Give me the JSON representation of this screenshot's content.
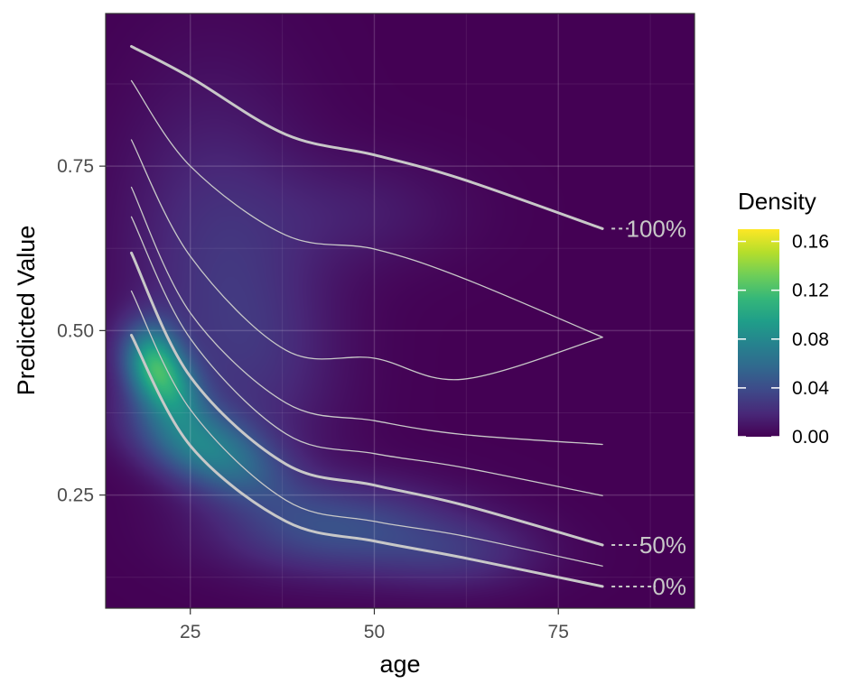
{
  "chart_data": {
    "type": "heatmap",
    "xlabel": "age",
    "ylabel": "Predicted Value",
    "xlim": [
      13.5,
      93.5
    ],
    "ylim": [
      0.078,
      0.982
    ],
    "x_ticks": [
      25,
      50,
      75
    ],
    "x_tick_labels": [
      "25",
      "50",
      "75"
    ],
    "y_ticks": [
      0.25,
      0.5,
      0.75
    ],
    "y_tick_labels": [
      "0.25",
      "0.50",
      "0.75"
    ],
    "grid": true,
    "panel_background": "#440154",
    "border_color": "#333333",
    "legend": {
      "title": "Density",
      "placement": "right",
      "min": 0,
      "max": 0.17,
      "ticks": [
        0.0,
        0.04,
        0.08,
        0.12,
        0.16
      ],
      "tick_labels": [
        "0.00",
        "0.04",
        "0.08",
        "0.12",
        "0.16"
      ],
      "colorscale": [
        "#440154",
        "#482878",
        "#3e4989",
        "#31688e",
        "#26828e",
        "#1f9e89",
        "#35b779",
        "#6ece58",
        "#b5de2b",
        "#fde725"
      ]
    },
    "density_components": [
      {
        "x": 21,
        "y": 0.43,
        "sx": 3.5,
        "sy": 0.045,
        "rho": -0.4,
        "weight": 0.085
      },
      {
        "x": 27,
        "y": 0.32,
        "sx": 7,
        "sy": 0.05,
        "rho": -0.5,
        "weight": 0.065
      },
      {
        "x": 20,
        "y": 0.47,
        "sx": 2.5,
        "sy": 0.04,
        "rho": 0,
        "weight": 0.03
      },
      {
        "x": 45,
        "y": 0.2,
        "sx": 11,
        "sy": 0.05,
        "rho": 0,
        "weight": 0.04
      },
      {
        "x": 62,
        "y": 0.16,
        "sx": 8,
        "sy": 0.04,
        "rho": 0,
        "weight": 0.02
      },
      {
        "x": 28,
        "y": 0.62,
        "sx": 9,
        "sy": 0.18,
        "rho": 0,
        "weight": 0.022
      },
      {
        "x": 48,
        "y": 0.68,
        "sx": 10,
        "sy": 0.06,
        "rho": 0,
        "weight": 0.012
      },
      {
        "x": 35,
        "y": 0.45,
        "sx": 8,
        "sy": 0.12,
        "rho": 0,
        "weight": 0.015
      }
    ],
    "curve_color": "#c8c8c8",
    "series": [
      {
        "role": "percentile-0",
        "label": "0%",
        "width": "thick",
        "points": [
          [
            17,
            0.493
          ],
          [
            25,
            0.325
          ],
          [
            38,
            0.21
          ],
          [
            50,
            0.18
          ],
          [
            62,
            0.155
          ],
          [
            81,
            0.111
          ]
        ]
      },
      {
        "role": "percentile",
        "label": "",
        "width": "thin",
        "points": [
          [
            17,
            0.56
          ],
          [
            25,
            0.38
          ],
          [
            38,
            0.242
          ],
          [
            50,
            0.21
          ],
          [
            62,
            0.188
          ],
          [
            81,
            0.142
          ]
        ]
      },
      {
        "role": "percentile-50",
        "label": "50%",
        "width": "thick",
        "points": [
          [
            17,
            0.618
          ],
          [
            25,
            0.43
          ],
          [
            38,
            0.297
          ],
          [
            50,
            0.265
          ],
          [
            62,
            0.235
          ],
          [
            81,
            0.174
          ]
        ]
      },
      {
        "role": "percentile",
        "label": "",
        "width": "thin",
        "points": [
          [
            17,
            0.673
          ],
          [
            25,
            0.488
          ],
          [
            38,
            0.343
          ],
          [
            50,
            0.313
          ],
          [
            62,
            0.292
          ],
          [
            81,
            0.249
          ]
        ]
      },
      {
        "role": "percentile",
        "label": "",
        "width": "thin",
        "points": [
          [
            17,
            0.718
          ],
          [
            25,
            0.527
          ],
          [
            38,
            0.39
          ],
          [
            50,
            0.363
          ],
          [
            62,
            0.342
          ],
          [
            81,
            0.327
          ]
        ]
      },
      {
        "role": "percentile",
        "label": "",
        "width": "thin",
        "points": [
          [
            17,
            0.79
          ],
          [
            25,
            0.613
          ],
          [
            38,
            0.47
          ],
          [
            50,
            0.458
          ],
          [
            62,
            0.426
          ],
          [
            81,
            0.49
          ]
        ]
      },
      {
        "role": "percentile",
        "label": "",
        "width": "thin",
        "points": [
          [
            17,
            0.88
          ],
          [
            25,
            0.75
          ],
          [
            38,
            0.645
          ],
          [
            50,
            0.624
          ],
          [
            62,
            0.58
          ],
          [
            81,
            0.49
          ]
        ]
      },
      {
        "role": "percentile-100",
        "label": "100%",
        "width": "thick",
        "points": [
          [
            17,
            0.932
          ],
          [
            25,
            0.885
          ],
          [
            38,
            0.798
          ],
          [
            50,
            0.767
          ],
          [
            62,
            0.73
          ],
          [
            81,
            0.655
          ]
        ]
      }
    ]
  }
}
